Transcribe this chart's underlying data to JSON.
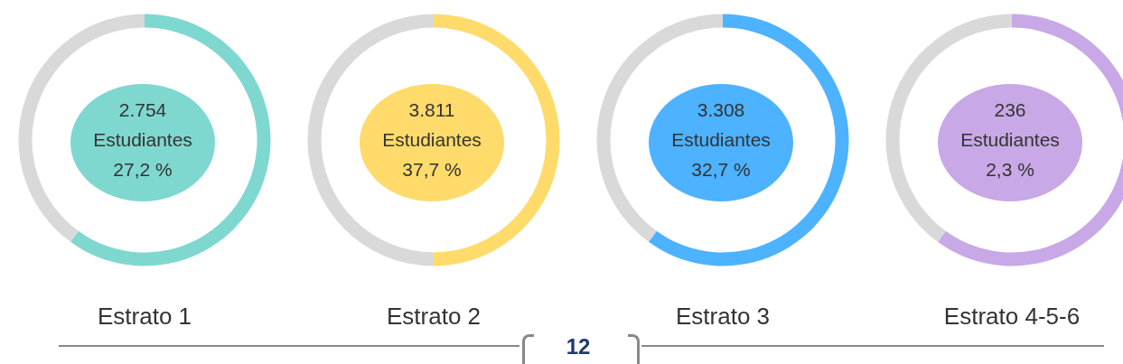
{
  "chart_data": [
    {
      "type": "donut",
      "title": "Estrato 1",
      "categories": [
        null,
        null
      ],
      "values": [
        60,
        40
      ],
      "colors": [
        "#7fd8d0",
        "#d9d9d9"
      ],
      "annotations": [
        "2.754",
        "Estudiantes",
        "27,2 %"
      ]
    },
    {
      "type": "donut",
      "title": "Estrato 2",
      "categories": [
        null,
        null
      ],
      "values": [
        50,
        50
      ],
      "colors": [
        "#fedb6a",
        "#d9d9d9"
      ],
      "annotations": [
        "3.811",
        "Estudiantes",
        "37,7 %"
      ]
    },
    {
      "type": "donut",
      "title": "Estrato 3",
      "categories": [
        null,
        null
      ],
      "values": [
        60,
        40
      ],
      "colors": [
        "#4db2ff",
        "#d9d9d9"
      ],
      "annotations": [
        "3.308",
        "Estudiantes",
        "32,7 %"
      ]
    },
    {
      "type": "donut",
      "title": "Estrato 4-5-6",
      "categories": [
        null,
        null
      ],
      "values": [
        60,
        40
      ],
      "colors": [
        "#c8a8e6",
        "#d9d9d9"
      ],
      "annotations": [
        "236",
        "Estudiantes",
        "2,3 %"
      ]
    },
    {
      "type": "other",
      "annotations": [
        "12"
      ]
    }
  ]
}
